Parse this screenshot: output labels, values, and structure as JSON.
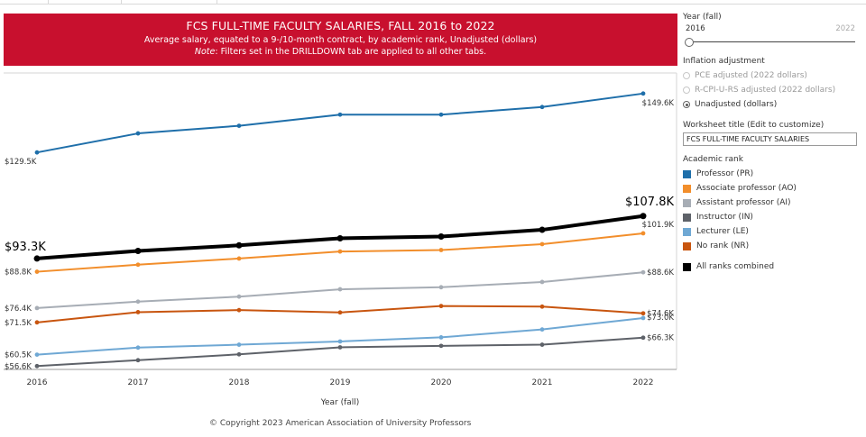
{
  "header": {
    "title": "FCS FULL-TIME FACULTY SALARIES, FALL 2016 to 2022",
    "subtitle": "Average salary, equated to a 9-/10-month contract, by academic rank, Unadjusted (dollars)",
    "note_label": "Note",
    "note_text": ": Filters set in the DRILLDOWN tab are applied to all other tabs."
  },
  "copyright": "© Copyright 2023 American Association of University Professors",
  "panel": {
    "year_filter": {
      "label": "Year (fall)",
      "from": "2016",
      "to": "2022"
    },
    "inflation": {
      "label": "Inflation adjustment",
      "options": [
        "PCE adjusted (2022 dollars)",
        "R-CPI-U-RS adjusted (2022 dollars)",
        "Unadjusted (dollars)"
      ],
      "selected": "Unadjusted (dollars)"
    },
    "worksheet_title": {
      "label": "Worksheet title (Edit to customize)",
      "value": "FCS FULL-TIME FACULTY SALARIES"
    },
    "rank_legend": {
      "label": "Academic rank",
      "items": [
        {
          "name": "Professor (PR)",
          "color": "#1f6faa"
        },
        {
          "name": "Associate professor (AO)",
          "color": "#f28e2b"
        },
        {
          "name": "Assistant professor (AI)",
          "color": "#a7adb5"
        },
        {
          "name": "Instructor (IN)",
          "color": "#5e6269"
        },
        {
          "name": "Lecturer (LE)",
          "color": "#6fa8d4"
        },
        {
          "name": "No rank (NR)",
          "color": "#c8550f"
        }
      ],
      "combined": {
        "name": "All ranks combined",
        "color": "#000000"
      }
    }
  },
  "chart_data": {
    "type": "line",
    "xlabel": "Year (fall)",
    "ylabel": "",
    "x": [
      "2016",
      "2017",
      "2018",
      "2019",
      "2020",
      "2021",
      "2022"
    ],
    "ylim": [
      53000,
      156000
    ],
    "grid": false,
    "series": [
      {
        "name": "Professor (PR)",
        "color": "#1f6faa",
        "values": [
          129.5,
          136.0,
          138.6,
          142.4,
          142.4,
          145.0,
          149.6
        ],
        "start_label": "$129.5K",
        "end_label": "$149.6K"
      },
      {
        "name": "All ranks combined",
        "color": "#000000",
        "values": [
          93.3,
          95.9,
          97.8,
          100.2,
          100.8,
          103.1,
          107.8
        ],
        "start_label": "$93.3K",
        "end_label": "$107.8K"
      },
      {
        "name": "Associate professor (AO)",
        "color": "#f28e2b",
        "values": [
          88.8,
          91.2,
          93.3,
          95.7,
          96.2,
          98.2,
          101.9
        ],
        "start_label": "$88.8K",
        "end_label": "$101.9K"
      },
      {
        "name": "Assistant professor (AI)",
        "color": "#a7adb5",
        "values": [
          76.4,
          78.6,
          80.3,
          82.8,
          83.5,
          85.3,
          88.6
        ],
        "start_label": "$76.4K",
        "end_label": "$88.6K"
      },
      {
        "name": "No rank (NR)",
        "color": "#c8550f",
        "values": [
          71.5,
          75.0,
          75.7,
          74.9,
          77.1,
          76.9,
          74.6
        ],
        "start_label": "$71.5K",
        "end_label": "$74.6K"
      },
      {
        "name": "Lecturer (LE)",
        "color": "#6fa8d4",
        "values": [
          60.5,
          62.9,
          63.9,
          65.0,
          66.4,
          69.1,
          73.0
        ],
        "start_label": "$60.5K",
        "end_label": "$73.0K"
      },
      {
        "name": "Instructor (IN)",
        "color": "#5e6269",
        "values": [
          56.6,
          58.6,
          60.6,
          63.0,
          63.5,
          63.9,
          66.3
        ],
        "start_label": "$56.6K",
        "end_label": "$66.3K"
      }
    ]
  }
}
